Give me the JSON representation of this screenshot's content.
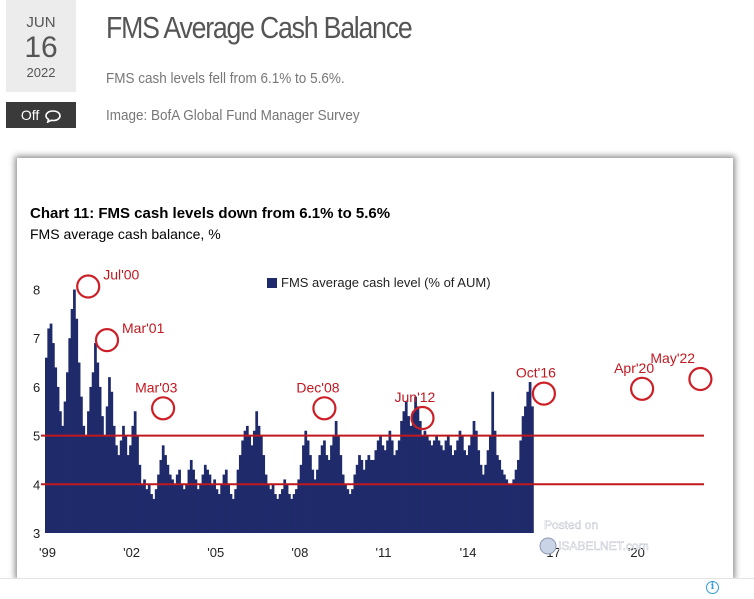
{
  "post": {
    "month": "JUN",
    "day": "16",
    "year": "2022",
    "comments_label": "Off",
    "title": "FMS Average Cash Balance",
    "summary": "FMS cash levels fell from 6.1% to 5.6%.",
    "image_credit": "Image: BofA Global Fund Manager Survey"
  },
  "watermark": {
    "line1": "Posted on",
    "line2": "ISABELNET.com"
  },
  "colors": {
    "bar": "#1f2a6b",
    "reference_line": "#c0181f",
    "circle": "#cc1f26",
    "annotation_text": "#c0181f"
  },
  "chart_data": {
    "type": "bar",
    "title": "Chart 11: FMS cash levels down from 6.1% to 5.6%",
    "subtitle": "FMS average cash balance, %",
    "legend": "FMS average cash level (% of AUM)",
    "legend_position": "top-center",
    "xlabel": "",
    "ylabel": "",
    "ylim": [
      3,
      8.5
    ],
    "yticks": [
      3,
      4,
      5,
      6,
      7,
      8
    ],
    "xlim": [
      1999.0,
      2022.5
    ],
    "xticks": [
      {
        "value": 1999,
        "label": "'99"
      },
      {
        "value": 2002,
        "label": "'02"
      },
      {
        "value": 2005,
        "label": "'05"
      },
      {
        "value": 2008,
        "label": "'08"
      },
      {
        "value": 2011,
        "label": "'11"
      },
      {
        "value": 2014,
        "label": "'14"
      },
      {
        "value": 2017,
        "label": "'17"
      },
      {
        "value": 2020,
        "label": "'20"
      }
    ],
    "reference_lines": [
      5.0,
      4.0
    ],
    "series": [
      {
        "name": "FMS average cash level (% of AUM)",
        "start": 1999.0,
        "step": 0.08333,
        "values": [
          6.6,
          7.2,
          7.3,
          6.9,
          6.4,
          6.0,
          5.5,
          5.2,
          5.7,
          6.3,
          7.0,
          7.6,
          8.0,
          7.4,
          6.5,
          5.8,
          5.2,
          5.0,
          5.5,
          6.0,
          6.3,
          6.9,
          6.5,
          6.0,
          5.4,
          5.0,
          5.6,
          6.2,
          5.9,
          5.2,
          4.8,
          4.6,
          4.9,
          5.2,
          5.0,
          4.6,
          4.8,
          5.2,
          5.5,
          5.0,
          4.4,
          4.0,
          4.1,
          3.9,
          4.0,
          3.8,
          3.7,
          3.9,
          4.2,
          4.5,
          4.8,
          4.6,
          4.4,
          4.2,
          4.1,
          4.0,
          4.2,
          4.3,
          4.0,
          3.9,
          4.0,
          4.3,
          4.5,
          4.3,
          4.1,
          3.9,
          4.0,
          4.2,
          4.4,
          4.3,
          4.2,
          4.0,
          4.1,
          3.9,
          3.8,
          4.0,
          4.2,
          4.3,
          4.0,
          3.8,
          3.7,
          3.9,
          4.3,
          4.6,
          4.9,
          5.1,
          5.2,
          5.0,
          4.8,
          5.1,
          5.5,
          5.2,
          5.0,
          4.6,
          4.2,
          4.0,
          3.9,
          4.0,
          3.8,
          3.7,
          3.8,
          3.9,
          4.1,
          4.0,
          3.8,
          3.7,
          3.8,
          3.9,
          4.1,
          4.4,
          4.8,
          5.1,
          4.9,
          4.6,
          4.3,
          4.1,
          4.3,
          4.6,
          4.8,
          4.9,
          4.6,
          4.5,
          4.8,
          5.0,
          5.3,
          5.0,
          4.6,
          4.2,
          4.0,
          3.9,
          3.8,
          3.9,
          4.2,
          4.4,
          4.6,
          4.5,
          4.3,
          4.5,
          4.6,
          4.5,
          4.5,
          4.7,
          4.9,
          5.0,
          4.8,
          4.7,
          4.9,
          5.1,
          4.9,
          4.6,
          4.7,
          4.9,
          5.3,
          5.5,
          5.7,
          5.4,
          5.2,
          5.5,
          5.8,
          5.6,
          5.3,
          5.0,
          5.1,
          5.0,
          4.9,
          4.8,
          4.9,
          5.0,
          4.9,
          4.8,
          4.7,
          4.9,
          5.0,
          4.8,
          4.6,
          4.7,
          4.9,
          5.1,
          5.0,
          4.7,
          4.6,
          4.8,
          5.0,
          5.3,
          5.1,
          4.7,
          4.4,
          4.2,
          4.4,
          4.7,
          5.0,
          5.9,
          5.1,
          4.6,
          4.5,
          4.3,
          4.2,
          4.1,
          4.0,
          4.0,
          4.1,
          4.3,
          4.5,
          4.9,
          5.4,
          5.6,
          5.9,
          6.1,
          5.6
        ]
      }
    ],
    "annotations": [
      {
        "label": "Jul'00",
        "x": 2000.5,
        "y": 8.0
      },
      {
        "label": "Mar'01",
        "x": 2001.17,
        "y": 6.9
      },
      {
        "label": "Mar'03",
        "x": 2003.17,
        "y": 5.5
      },
      {
        "label": "Dec'08",
        "x": 2008.92,
        "y": 5.5
      },
      {
        "label": "Jun'12",
        "x": 2012.42,
        "y": 5.3
      },
      {
        "label": "Oct'16",
        "x": 2016.75,
        "y": 5.8
      },
      {
        "label": "Apr'20",
        "x": 2020.25,
        "y": 5.9
      },
      {
        "label": "May'22",
        "x": 2022.33,
        "y": 6.1
      }
    ]
  }
}
